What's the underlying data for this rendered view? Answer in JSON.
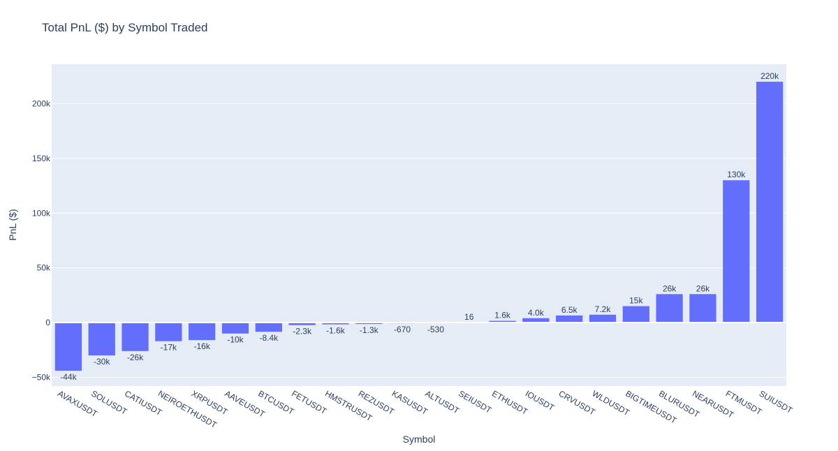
{
  "chart_data": {
    "type": "bar",
    "title": "Total PnL ($) by Symbol Traded",
    "xlabel": "Symbol",
    "ylabel": "PnL ($)",
    "ylim": [
      -58000,
      236000
    ],
    "yticks": [
      -50000,
      0,
      50000,
      100000,
      150000,
      200000
    ],
    "ytick_labels": [
      "−50k",
      "0",
      "50k",
      "100k",
      "150k",
      "200k"
    ],
    "grid": true,
    "bar_color": "#636efa",
    "plot_bg": "#e5ecf6",
    "categories": [
      "AVAXUSDT",
      "SOLUSDT",
      "CATIUSDT",
      "NEIROETHUSDT",
      "XRPUSDT",
      "AAVEUSDT",
      "BTCUSDT",
      "FETUSDT",
      "HMSTRUSDT",
      "REZUSDT",
      "KASUSDT",
      "ALTUSDT",
      "SEIUSDT",
      "ETHUSDT",
      "IOUSDT",
      "CRVUSDT",
      "WLDUSDT",
      "BIGTIMEUSDT",
      "BLURUSDT",
      "NEARUSDT",
      "FTMUSDT",
      "SUIUSDT"
    ],
    "values": [
      -44000,
      -30000,
      -26000,
      -17000,
      -16000,
      -10000,
      -8400,
      -2300,
      -1600,
      -1300,
      -670,
      -530,
      16,
      1600,
      4000,
      6500,
      7200,
      15000,
      26000,
      26000,
      130000,
      220000
    ],
    "data_labels": [
      "-44k",
      "-30k",
      "-26k",
      "-17k",
      "-16k",
      "-10k",
      "-8.4k",
      "-2.3k",
      "-1.6k",
      "-1.3k",
      "-670",
      "-530",
      "16",
      "1.6k",
      "4.0k",
      "6.5k",
      "7.2k",
      "15k",
      "26k",
      "26k",
      "130k",
      "220k"
    ]
  }
}
